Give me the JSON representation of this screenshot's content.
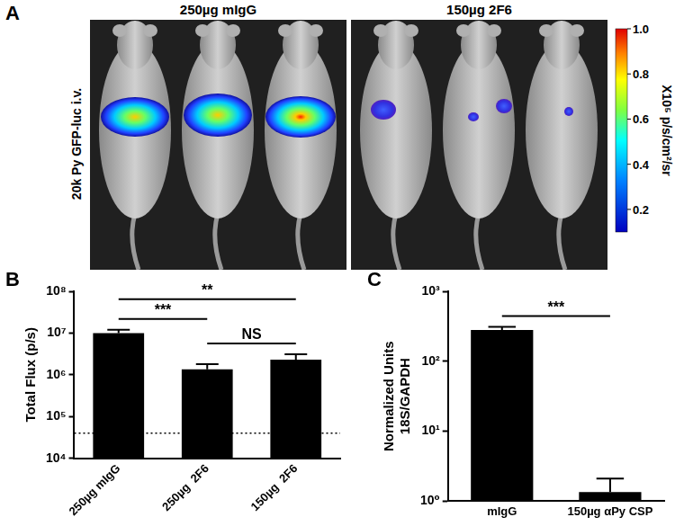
{
  "panel_a": {
    "label": "A",
    "side_label": "20k Py GFP-luc i.v.",
    "groups": [
      "250µg mIgG",
      "150µg 2F6"
    ],
    "color_bar": {
      "range": [
        0.1,
        1
      ],
      "ticks": [
        0.2,
        0.4,
        0.6,
        0.8,
        {
          "value": 1,
          "label": "1.0"
        }
      ],
      "label": "X10⁵ p/s/cm²/sr"
    }
  },
  "chart_data": [
    {
      "type": "bar",
      "label": "B",
      "y_label": "Total Flux (p/s)",
      "categories": [
        "250µg mIgG",
        "250µg  2F6",
        "150µg  2F6"
      ],
      "values": [
        10000000,
        1350000,
        2300000
      ],
      "errors": [
        2000000,
        450000,
        800000
      ],
      "color": "#000000",
      "log": "y",
      "grid": false,
      "ylim": [
        10000,
        100000000
      ],
      "yticks": [
        {
          "value": 10000,
          "label": "10⁴"
        },
        {
          "value": 100000,
          "label": "10⁵"
        },
        {
          "value": 1000000,
          "label": "10⁶"
        },
        {
          "value": 10000000,
          "label": "10⁷"
        },
        {
          "value": 100000000,
          "label": "10⁸"
        }
      ],
      "reference_line": 40000,
      "annotations": [
        {
          "from": 0,
          "to": 1,
          "text": "***"
        },
        {
          "from": 0,
          "to": 2,
          "text": "**"
        },
        {
          "from": 1,
          "to": 2,
          "text": "NS"
        }
      ]
    },
    {
      "type": "bar",
      "label": "C",
      "y_label": [
        "Normalized Units",
        "18S/GAPDH"
      ],
      "categories": [
        "mIgG",
        "150µg αPy CSP"
      ],
      "values": [
        280,
        1.35
      ],
      "errors": [
        30,
        0.75
      ],
      "color": "#000000",
      "log": "y",
      "grid": false,
      "ylim": [
        1,
        1000
      ],
      "yticks": [
        {
          "value": 1,
          "label": "10⁰"
        },
        {
          "value": 10,
          "label": "10¹"
        },
        {
          "value": 100,
          "label": "10²"
        },
        {
          "value": 1000,
          "label": "10³"
        }
      ],
      "annotations": [
        {
          "from": 0,
          "to": 1,
          "text": "***"
        }
      ]
    }
  ]
}
